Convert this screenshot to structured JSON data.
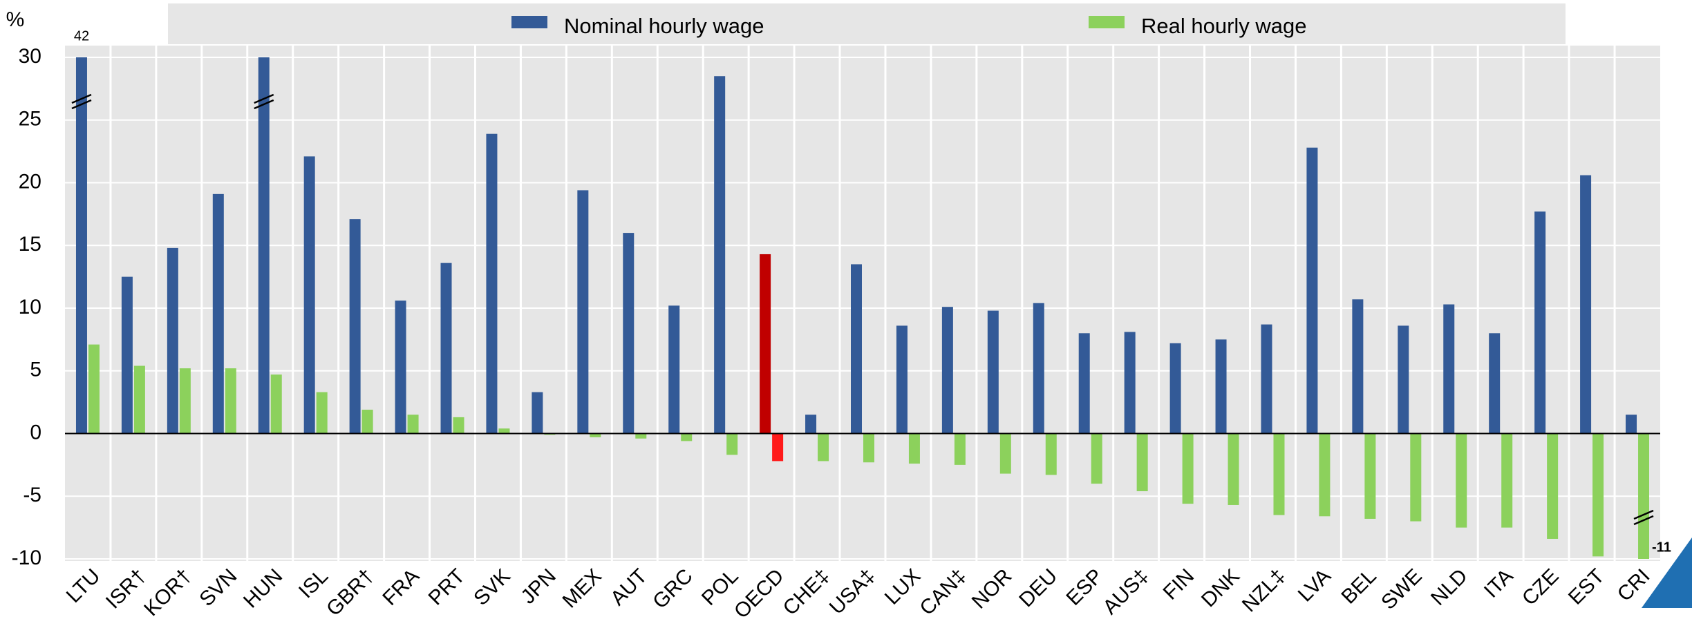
{
  "chart_data": {
    "type": "bar",
    "y_unit": "%",
    "categories": [
      "LTU",
      "ISR†",
      "KOR†",
      "SVN",
      "HUN",
      "ISL",
      "GBR†",
      "FRA",
      "PRT",
      "SVK",
      "JPN",
      "MEX",
      "AUT",
      "GRC",
      "POL",
      "OECD",
      "CHE‡",
      "USA‡",
      "LUX",
      "CAN‡",
      "NOR",
      "DEU",
      "ESP",
      "AUS‡",
      "FIN",
      "DNK",
      "NZL‡",
      "LVA",
      "BEL",
      "SWE",
      "NLD",
      "ITA",
      "CZE",
      "EST",
      "CRI"
    ],
    "highlight": "OECD",
    "series": [
      {
        "name": "Nominal hourly wage",
        "color": "#335a97",
        "highlight_color": "#c00000",
        "values": [
          42,
          12.5,
          14.8,
          19.1,
          31,
          22.1,
          17.1,
          10.6,
          13.6,
          23.9,
          3.3,
          19.4,
          16.0,
          10.2,
          28.5,
          14.3,
          1.5,
          13.5,
          8.6,
          10.1,
          9.8,
          10.4,
          8.0,
          8.1,
          7.2,
          7.5,
          8.7,
          22.8,
          10.7,
          8.6,
          10.3,
          8.0,
          17.7,
          20.6,
          1.5
        ],
        "value_labels": [
          "42",
          null,
          null,
          null,
          null,
          null,
          null,
          null,
          null,
          null,
          null,
          null,
          null,
          null,
          null,
          null,
          null,
          null,
          null,
          null,
          null,
          null,
          null,
          null,
          null,
          null,
          null,
          null,
          null,
          null,
          null,
          null,
          null,
          null,
          null
        ]
      },
      {
        "name": "Real hourly wage",
        "color": "#8cd15c",
        "highlight_color": "#ff1a1a",
        "values": [
          7.1,
          5.4,
          5.2,
          5.2,
          4.7,
          3.3,
          1.9,
          1.5,
          1.3,
          0.4,
          -0.1,
          -0.3,
          -0.4,
          -0.6,
          -1.7,
          -2.2,
          -2.2,
          -2.3,
          -2.4,
          -2.5,
          -3.2,
          -3.3,
          -4.0,
          -4.6,
          -5.6,
          -5.7,
          -6.5,
          -6.6,
          -6.8,
          -7.0,
          -7.5,
          -7.5,
          -8.4,
          -9.8,
          -11
        ],
        "value_labels": [
          null,
          null,
          null,
          null,
          null,
          null,
          null,
          null,
          null,
          null,
          null,
          null,
          null,
          null,
          null,
          null,
          null,
          null,
          null,
          null,
          null,
          null,
          null,
          null,
          null,
          null,
          null,
          null,
          null,
          null,
          null,
          null,
          null,
          null,
          "-11"
        ]
      }
    ],
    "ylim": [
      -10,
      30
    ],
    "yticks": [
      -10,
      -5,
      0,
      5,
      10,
      15,
      20,
      25,
      30
    ],
    "grid": true
  }
}
